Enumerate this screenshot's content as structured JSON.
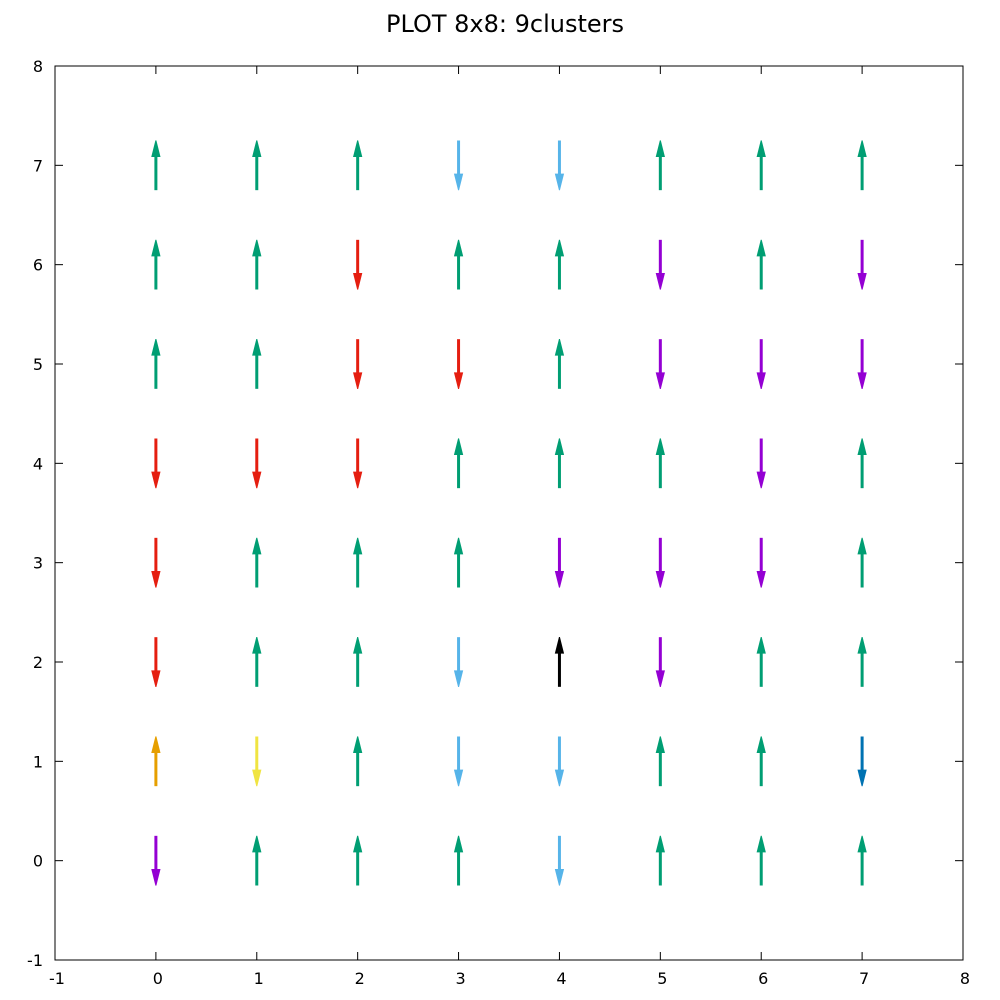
{
  "chart_data": {
    "type": "vector-field",
    "title": "PLOT 8x8: 9clusters",
    "xlim": [
      -1,
      8
    ],
    "ylim": [
      -1,
      8
    ],
    "x_ticks": [
      -1,
      0,
      1,
      2,
      3,
      4,
      5,
      6,
      7,
      8
    ],
    "y_ticks": [
      -1,
      0,
      1,
      2,
      3,
      4,
      5,
      6,
      7,
      8
    ],
    "grid": false,
    "arrow_length": 0.5,
    "colors": {
      "G": "#009e73",
      "R": "#e51e10",
      "P": "#9400d3",
      "L": "#56b4e9",
      "K": "#000000",
      "O": "#e69f00",
      "Y": "#f0e442",
      "B": "#0072b2"
    },
    "rows": [
      {
        "y": 7,
        "dirs": [
          "up",
          "up",
          "up",
          "down",
          "down",
          "up",
          "up",
          "up"
        ],
        "colors": [
          "G",
          "G",
          "G",
          "L",
          "L",
          "G",
          "G",
          "G"
        ]
      },
      {
        "y": 6,
        "dirs": [
          "up",
          "up",
          "down",
          "up",
          "up",
          "down",
          "up",
          "down"
        ],
        "colors": [
          "G",
          "G",
          "R",
          "G",
          "G",
          "P",
          "G",
          "P"
        ]
      },
      {
        "y": 5,
        "dirs": [
          "up",
          "up",
          "down",
          "down",
          "up",
          "down",
          "down",
          "down"
        ],
        "colors": [
          "G",
          "G",
          "R",
          "R",
          "G",
          "P",
          "P",
          "P"
        ]
      },
      {
        "y": 4,
        "dirs": [
          "down",
          "down",
          "down",
          "up",
          "up",
          "up",
          "down",
          "up"
        ],
        "colors": [
          "R",
          "R",
          "R",
          "G",
          "G",
          "G",
          "P",
          "G"
        ]
      },
      {
        "y": 3,
        "dirs": [
          "down",
          "up",
          "up",
          "up",
          "down",
          "down",
          "down",
          "up"
        ],
        "colors": [
          "R",
          "G",
          "G",
          "G",
          "P",
          "P",
          "P",
          "G"
        ]
      },
      {
        "y": 2,
        "dirs": [
          "down",
          "up",
          "up",
          "down",
          "up",
          "down",
          "up",
          "up"
        ],
        "colors": [
          "R",
          "G",
          "G",
          "L",
          "K",
          "P",
          "G",
          "G"
        ]
      },
      {
        "y": 1,
        "dirs": [
          "up",
          "down",
          "up",
          "down",
          "down",
          "up",
          "up",
          "down"
        ],
        "colors": [
          "O",
          "Y",
          "G",
          "L",
          "L",
          "G",
          "G",
          "B"
        ]
      },
      {
        "y": 0,
        "dirs": [
          "down",
          "up",
          "up",
          "up",
          "down",
          "up",
          "up",
          "up"
        ],
        "colors": [
          "P",
          "G",
          "G",
          "G",
          "L",
          "G",
          "G",
          "G"
        ]
      }
    ],
    "x": [
      0,
      1,
      2,
      3,
      4,
      5,
      6,
      7
    ]
  }
}
